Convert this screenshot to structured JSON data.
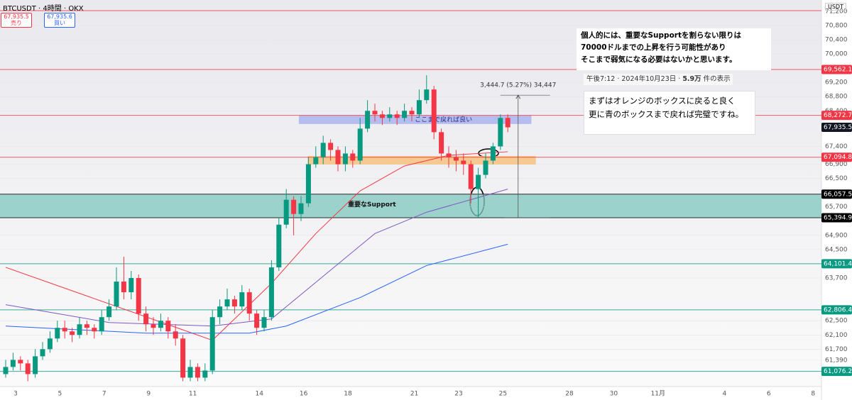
{
  "header": {
    "symbol": "BTCUSDT",
    "interval": "4時間",
    "exchange": "OKX",
    "sell_price": "67,935.5",
    "sell_label": "売り",
    "buy_price": "67,935.6",
    "buy_label": "買い",
    "currency": "USDT"
  },
  "chart_data": {
    "type": "candlestick",
    "ylim": [
      60650,
      71515
    ],
    "yticks": [
      {
        "value": 71200,
        "label": "71,200"
      },
      {
        "value": 70800,
        "label": "70,800"
      },
      {
        "value": 70400,
        "label": "70,400"
      },
      {
        "value": 70000,
        "label": "70,000"
      },
      {
        "value": 69200,
        "label": "69,200"
      },
      {
        "value": 68800,
        "label": "68,800"
      },
      {
        "value": 68400,
        "label": "68,400"
      },
      {
        "value": 67400,
        "label": "67,400"
      },
      {
        "value": 66900,
        "label": "66,900"
      },
      {
        "value": 66500,
        "label": "66,500"
      },
      {
        "value": 65700,
        "label": "65,700"
      },
      {
        "value": 64900,
        "label": "64,900"
      },
      {
        "value": 64500,
        "label": "64,500"
      },
      {
        "value": 63700,
        "label": "63,700"
      },
      {
        "value": 62500,
        "label": "62,500"
      },
      {
        "value": 62100,
        "label": "62,100"
      },
      {
        "value": 61700,
        "label": "61,700"
      },
      {
        "value": 61390,
        "label": "61,390"
      }
    ],
    "x_labels": [
      "3",
      "5",
      "7",
      "9",
      "11",
      "14",
      "16",
      "18",
      "21",
      "23",
      "25",
      "28",
      "30",
      "11月",
      "4",
      "6",
      "8"
    ],
    "up_color": "#089981",
    "down_color": "#f23645",
    "open": [
      61000,
      61200,
      61400,
      61300,
      61000,
      61500,
      61700,
      62000,
      62300,
      62200,
      62100,
      62400,
      62300,
      62200,
      62600,
      62900,
      63600,
      63300,
      63700,
      62700,
      62400,
      62300,
      62500,
      62200,
      62000,
      60900,
      61200,
      60900,
      61100,
      62600,
      62900,
      63100,
      62900,
      63300,
      62700,
      62300,
      62600,
      64000,
      65200,
      65900,
      65500,
      65800,
      66900,
      67100,
      67500,
      67300,
      66900,
      67200,
      67000,
      67900,
      68400,
      68300,
      68200,
      68300,
      68200,
      68400,
      68300,
      68700,
      69000,
      67800,
      67200,
      67100,
      67000,
      66900,
      66200,
      66600,
      67000,
      67400,
      68200
    ],
    "high": [
      61400,
      61600,
      61500,
      61400,
      61700,
      61900,
      62200,
      62500,
      62500,
      62300,
      62600,
      62500,
      62400,
      62800,
      63100,
      64000,
      64300,
      63900,
      63800,
      62900,
      62600,
      62700,
      62600,
      62400,
      62100,
      61400,
      61300,
      61300,
      62800,
      63100,
      63400,
      63200,
      63500,
      63400,
      62800,
      62800,
      64200,
      65400,
      66200,
      66000,
      66000,
      67100,
      67400,
      67700,
      67600,
      67400,
      67400,
      67300,
      68200,
      68700,
      68600,
      68400,
      68500,
      68400,
      68600,
      68500,
      69000,
      69400,
      69100,
      67900,
      67400,
      67300,
      67200,
      67000,
      66800,
      67200,
      67500,
      68300,
      68300
    ],
    "low": [
      60900,
      61100,
      61100,
      60800,
      60900,
      61400,
      61600,
      61900,
      62000,
      61900,
      62000,
      62100,
      62000,
      62100,
      62500,
      62800,
      63100,
      63100,
      62500,
      62200,
      62100,
      62200,
      62000,
      61800,
      60800,
      60800,
      60800,
      60800,
      61000,
      62400,
      62800,
      62700,
      62800,
      62500,
      62100,
      62200,
      62500,
      63900,
      65100,
      64900,
      65300,
      65700,
      66800,
      66900,
      67000,
      66700,
      66700,
      66800,
      66900,
      67800,
      68100,
      68000,
      68100,
      68000,
      68100,
      68100,
      68200,
      68600,
      67600,
      67000,
      66800,
      66700,
      66600,
      65800,
      65400,
      66500,
      66900,
      67300,
      67800
    ],
    "close": [
      61200,
      61400,
      61300,
      61000,
      61500,
      61700,
      62000,
      62300,
      62200,
      62100,
      62400,
      62300,
      62200,
      62600,
      62900,
      63600,
      63300,
      63700,
      62700,
      62400,
      62300,
      62500,
      62200,
      62000,
      60900,
      61200,
      60900,
      61100,
      62600,
      62900,
      63100,
      62900,
      63300,
      62700,
      62300,
      62600,
      64000,
      65200,
      65900,
      65500,
      65800,
      66900,
      67100,
      67500,
      67300,
      66900,
      67200,
      67000,
      67900,
      68400,
      68300,
      68200,
      68300,
      68200,
      68400,
      68300,
      68700,
      69000,
      67800,
      67200,
      67100,
      67000,
      66900,
      66200,
      66600,
      67000,
      67400,
      68200,
      67935.5
    ],
    "moving_averages": [
      {
        "color": "#f23645",
        "x": [
          0,
          28,
          36,
          42,
          48,
          54,
          60,
          68
        ],
        "values": [
          64000,
          61950,
          63550,
          64950,
          66150,
          66850,
          67150,
          67250
        ]
      },
      {
        "color": "#7e57c2",
        "x": [
          0,
          14,
          28,
          36,
          43,
          50,
          57,
          68
        ],
        "values": [
          62950,
          62450,
          62350,
          62550,
          63750,
          64950,
          65550,
          66200
        ]
      },
      {
        "color": "#2962ff",
        "x": [
          0,
          19,
          33,
          38,
          48,
          57,
          68
        ],
        "values": [
          62350,
          62150,
          62150,
          62350,
          63150,
          64050,
          64650
        ]
      }
    ],
    "levels": [
      {
        "value": 71215,
        "color": "#f23645"
      },
      {
        "value": 69562.1,
        "label": "69,562.1",
        "color": "#f23645"
      },
      {
        "value": 68272.7,
        "label": "68,272.7",
        "color": "#f23645"
      },
      {
        "value": 67094.8,
        "label": "67,094.8",
        "color": "#f23645"
      },
      {
        "value": 66057.5,
        "label": "66,057.5",
        "color": "#000000"
      },
      {
        "value": 65394.9,
        "label": "65,394.9",
        "color": "#000000"
      },
      {
        "value": 64101.4,
        "label": "64,101.4",
        "color": "#089981"
      },
      {
        "value": 62806.4,
        "label": "62,806.4",
        "color": "#089981"
      },
      {
        "value": 61076.2,
        "label": "61,076.2",
        "color": "#089981"
      }
    ],
    "last_price": {
      "value": 67935.5,
      "label": "67,935.5"
    },
    "support_zone": {
      "from": 65394.9,
      "to": 66057.5,
      "color": "#7fc7bd",
      "label": "重要なSupport"
    },
    "boxes": [
      {
        "from": 68030,
        "to": 68270,
        "x_from": 39.7,
        "x_to": 71.2,
        "color": "#aab4ef",
        "label": "ここまで戻れば良い"
      },
      {
        "from": 66891,
        "to": 67131,
        "x_from": 40.9,
        "x_to": 71.8,
        "color": "#f7c27f"
      }
    ],
    "measure": {
      "from": 65394.9,
      "to": 68839.6,
      "x": 69.4,
      "label": "3,444.7 (5.27%) 34,447"
    }
  },
  "notes": {
    "main": [
      "個人的には、重要なSupportを割らない限りは",
      "70000ドルまでの上昇を行う可能性があり",
      "そこまで弱気になる必要はないかと思います。"
    ],
    "tooltip": [
      "午後7:12 · 2024年10月23日 · ",
      "5.9万",
      " 件の表示"
    ],
    "sub": [
      "まずはオレンジのボックスに戻ると良く",
      "更に青のボックスまで戻れば完璧ですね。"
    ]
  }
}
